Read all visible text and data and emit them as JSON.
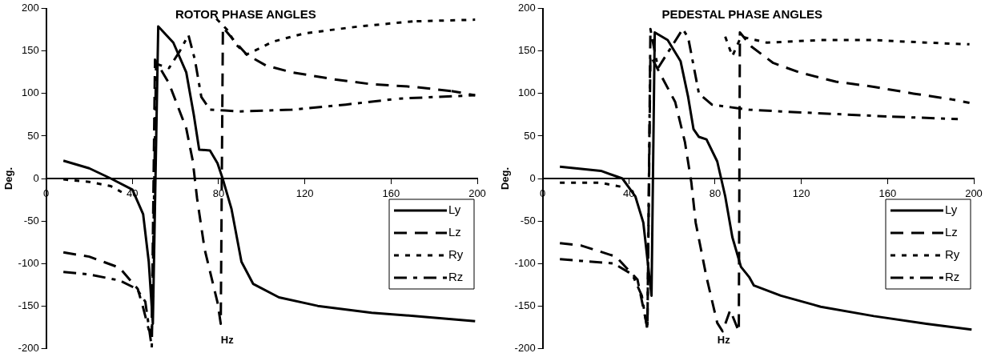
{
  "chart_data": [
    {
      "type": "line",
      "title": "ROTOR PHASE ANGLES",
      "xlabel": "Hz",
      "ylabel": "Deg.",
      "xlim": [
        0,
        200
      ],
      "xticks": [
        0,
        40,
        80,
        120,
        160,
        200
      ],
      "ylim": [
        -200,
        200
      ],
      "yticks": [
        -200,
        -150,
        -100,
        -50,
        0,
        50,
        100,
        150,
        200
      ],
      "grid": false,
      "legend": "bottom right",
      "marker": "none",
      "series": [
        {
          "name": "Ly",
          "color": "#000000",
          "line_style": "solid",
          "x": [
            8,
            20,
            30,
            40,
            45,
            47.6,
            49.5,
            52,
            59,
            65,
            68.5,
            71,
            76,
            79.5,
            82,
            86,
            90.6,
            96,
            108,
            126,
            151,
            176,
            199
          ],
          "values": [
            21,
            12,
            0,
            -13,
            -42,
            -98,
            -171,
            179,
            160,
            125,
            75,
            34,
            33,
            18,
            -1,
            -36,
            -98,
            -124,
            -140,
            -150,
            -158,
            -163,
            -168
          ]
        },
        {
          "name": "Lz",
          "color": "#000000",
          "line_style": "dashed",
          "x": [
            8,
            20,
            34,
            42.5,
            45,
            47.6,
            49,
            50.5,
            57,
            65,
            68,
            70,
            73.5,
            79.5,
            81,
            82,
            84,
            88,
            93,
            102,
            114,
            133,
            151,
            170,
            188,
            199
          ],
          "values": [
            -87,
            -92,
            -105,
            -130,
            -152,
            -178,
            -180,
            140,
            112,
            59,
            21,
            -23,
            -83,
            -146,
            -171,
            178,
            172,
            160,
            146,
            133,
            125,
            117,
            111,
            108,
            103,
            98
          ]
        },
        {
          "name": "Ry",
          "color": "#000000",
          "line_style": "dotted",
          "x": [
            8,
            20,
            30,
            35,
            60,
            79,
            84,
            88,
            93,
            98,
            105,
            120,
            145,
            170,
            199
          ],
          "values": [
            -1,
            -4,
            -9,
            -16,
            null,
            188,
            175,
            158,
            146,
            152,
            161,
            171,
            179,
            185,
            187
          ]
        },
        {
          "name": "Rz",
          "color": "#000000",
          "line_style": "dashdot",
          "x": [
            8,
            20,
            34,
            42,
            46,
            49,
            51,
            57,
            62,
            66,
            69,
            72,
            76,
            83,
            89.5,
            114,
            139,
            163,
            199
          ],
          "values": [
            -110,
            -113,
            -120,
            -130,
            -145,
            -199,
            135,
            130,
            150,
            169,
            140,
            96,
            81,
            80,
            79,
            81,
            87,
            94,
            98
          ]
        }
      ]
    },
    {
      "type": "line",
      "title": "PEDESTAL PHASE ANGLES",
      "xlabel": "Hz",
      "ylabel": "Deg.",
      "xlim": [
        0,
        200
      ],
      "xticks": [
        0,
        40,
        80,
        120,
        160,
        200
      ],
      "ylim": [
        -200,
        200
      ],
      "yticks": [
        -200,
        -150,
        -100,
        -50,
        0,
        50,
        100,
        150,
        200
      ],
      "grid": false,
      "legend": "bottom right",
      "marker": "none",
      "series": [
        {
          "name": "Ly",
          "color": "#000000",
          "line_style": "solid",
          "x": [
            8,
            27,
            37,
            43,
            46.7,
            50.5,
            52,
            58,
            64,
            67.5,
            70,
            72.5,
            76,
            81,
            84.7,
            88,
            92,
            95.8,
            98,
            110.5,
            129,
            153.6,
            178,
            199
          ],
          "values": [
            14,
            9,
            0,
            -21,
            -52,
            -138,
            172,
            163,
            138,
            96,
            58,
            49,
            46,
            20,
            -21,
            -69,
            -104,
            -116,
            -126,
            -138,
            -151,
            -162,
            -171,
            -178
          ]
        },
        {
          "name": "Lz",
          "color": "#000000",
          "line_style": "dashed",
          "x": [
            8,
            18,
            34,
            44,
            48.6,
            50,
            61.5,
            66,
            69,
            71,
            76,
            81,
            83.5,
            87,
            91,
            91.5,
            97,
            107,
            119,
            136,
            153.6,
            172,
            190,
            198
          ],
          "values": [
            -76,
            -79,
            -92,
            -119,
            -176,
            145,
            90,
            43,
            -5,
            -52,
            -116,
            -170,
            -180,
            -155,
            -180,
            172,
            155,
            136,
            125,
            114,
            108,
            100,
            93,
            89
          ]
        },
        {
          "name": "Ry",
          "color": "#000000",
          "line_style": "dotted",
          "x": [
            8,
            27,
            37,
            60,
            84.7,
            88,
            92,
            104,
            129,
            153.6,
            178,
            198
          ],
          "values": [
            -5,
            -5,
            -10,
            null,
            167,
            144,
            167,
            160,
            163,
            163,
            160,
            158
          ]
        },
        {
          "name": "Rz",
          "color": "#000000",
          "line_style": "dashdot",
          "x": [
            8,
            18,
            33,
            41.6,
            46,
            48.6,
            50,
            53.5,
            65,
            67.5,
            72.5,
            78.5,
            87,
            95.8,
            110.5,
            135,
            159.5,
            192.6
          ],
          "values": [
            -95,
            -97,
            -100,
            -113,
            -138,
            -178,
            176,
            130,
            176,
            166,
            100,
            87,
            84,
            81,
            79,
            76,
            73,
            70
          ]
        }
      ]
    }
  ]
}
